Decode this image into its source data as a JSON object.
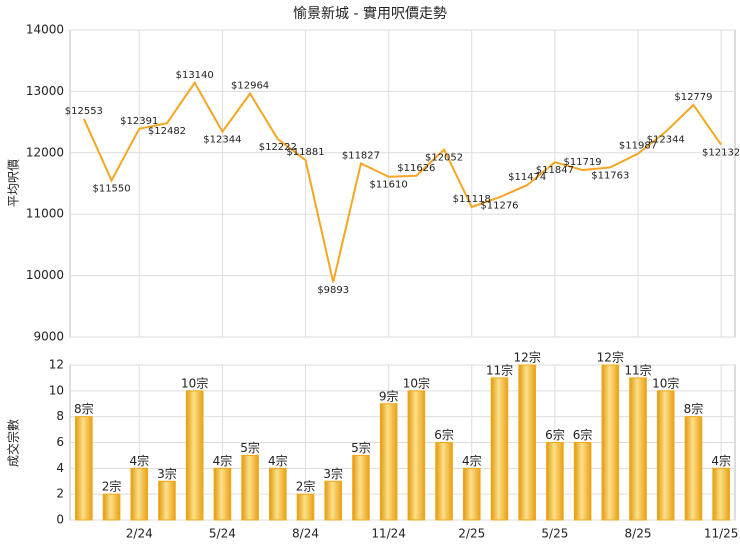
{
  "chart_data": [
    {
      "type": "line",
      "title": "愉景新城 - 實用呎價走勢",
      "y_label": "平均呎價",
      "values": [
        12553,
        11550,
        12391,
        12482,
        13140,
        12344,
        12964,
        12222,
        11881,
        9893,
        11827,
        11610,
        11626,
        12052,
        11118,
        11276,
        11474,
        11847,
        11719,
        11763,
        11987,
        12344,
        12779,
        12132
      ],
      "value_labels": [
        "$12553",
        "$11550",
        "$12391",
        "$12482",
        "$13140",
        "$12344",
        "$12964",
        "$12222",
        "$11881",
        "$9893",
        "$11827",
        "$11610",
        "$11626",
        "$12052",
        "$11118",
        "$11276",
        "$11474",
        "$11847",
        "$11719",
        "$11763",
        "$11987",
        "$12344",
        "$12779",
        "$12132"
      ],
      "color": "#f5a623",
      "ylim": [
        9000,
        14000
      ],
      "yticks": [
        9000,
        10000,
        11000,
        12000,
        13000,
        14000
      ],
      "grid": true
    },
    {
      "type": "bar",
      "y_label": "成交宗數",
      "categories": [
        null,
        null,
        "2/24",
        null,
        null,
        "5/24",
        null,
        null,
        "8/24",
        null,
        null,
        "11/24",
        null,
        null,
        "2/25",
        null,
        null,
        "5/25",
        null,
        null,
        "8/25",
        null,
        null,
        "11/25"
      ],
      "values": [
        8,
        2,
        4,
        3,
        10,
        4,
        5,
        4,
        2,
        3,
        5,
        9,
        10,
        6,
        4,
        11,
        12,
        6,
        6,
        12,
        11,
        10,
        8,
        4
      ],
      "value_labels": [
        "8宗",
        "2宗",
        "4宗",
        "3宗",
        "10宗",
        "4宗",
        "5宗",
        "4宗",
        "2宗",
        "3宗",
        "5宗",
        "9宗",
        "10宗",
        "6宗",
        "4宗",
        "11宗",
        "12宗",
        "6宗",
        "6宗",
        "12宗",
        "11宗",
        "10宗",
        "8宗",
        "4宗"
      ],
      "color": "#f0a818",
      "ylim": [
        0,
        12
      ],
      "yticks": [
        0,
        2,
        4,
        6,
        8,
        10,
        12
      ],
      "grid": true
    }
  ]
}
